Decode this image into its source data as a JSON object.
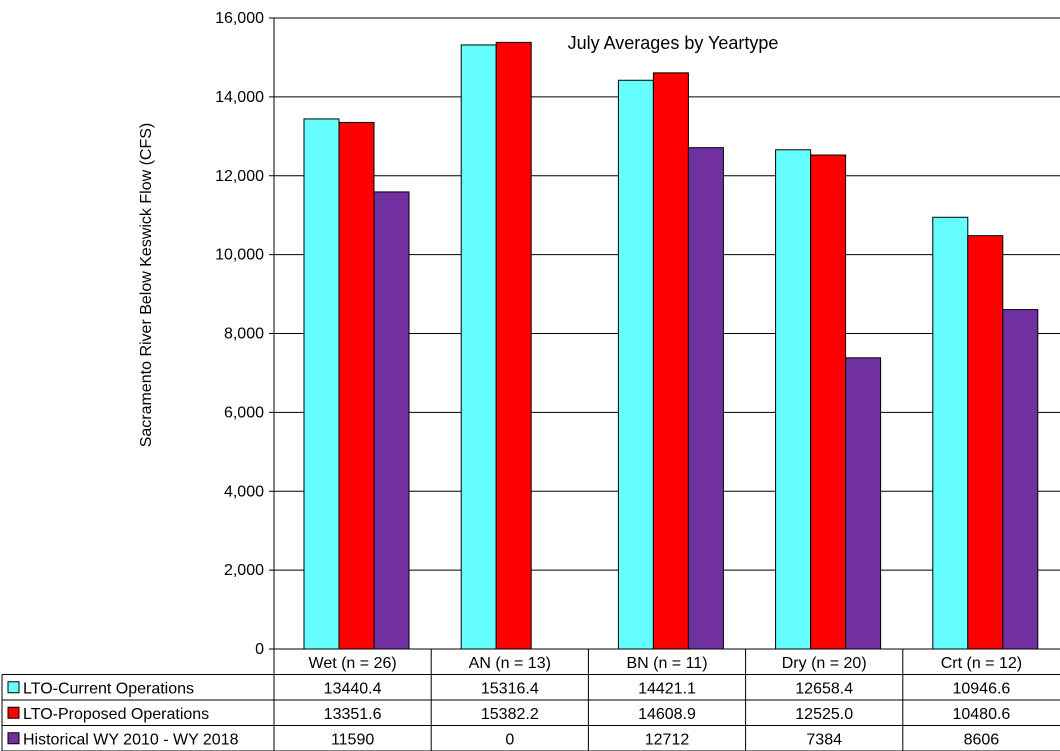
{
  "chart_data": {
    "type": "bar",
    "title": "July Averages by Yeartype",
    "ylabel": "Sacramento River Below Keswick Flow (CFS)",
    "xlabel": "",
    "ylim": [
      0,
      16000
    ],
    "yticks": [
      0,
      2000,
      4000,
      6000,
      8000,
      10000,
      12000,
      14000,
      16000
    ],
    "ytick_labels": [
      "0",
      "2,000",
      "4,000",
      "6,000",
      "8,000",
      "10,000",
      "12,000",
      "14,000",
      "16,000"
    ],
    "grid": true,
    "legend_placement": "data-table-left",
    "categories": [
      "Wet (n = 26)",
      "AN  (n = 13)",
      "BN  (n = 11)",
      "Dry (n = 20)",
      "Crt (n = 12)"
    ],
    "series": [
      {
        "name": "LTO-Current Operations",
        "color": "#66FFFF",
        "values": [
          13440.4,
          15316.4,
          14421.1,
          12658.4,
          10946.6
        ],
        "labels": [
          "13440.4",
          "15316.4",
          "14421.1",
          "12658.4",
          "10946.6"
        ]
      },
      {
        "name": "LTO-Proposed Operations",
        "color": "#FF0000",
        "values": [
          13351.6,
          15382.2,
          14608.9,
          12525.0,
          10480.6
        ],
        "labels": [
          "13351.6",
          "15382.2",
          "14608.9",
          "12525.0",
          "10480.6"
        ]
      },
      {
        "name": "Historical WY 2010 - WY 2018",
        "color": "#7030A0",
        "values": [
          11590,
          0,
          12712,
          7384,
          8606
        ],
        "labels": [
          "11590",
          "0",
          "12712",
          "7384",
          "8606"
        ]
      }
    ]
  }
}
